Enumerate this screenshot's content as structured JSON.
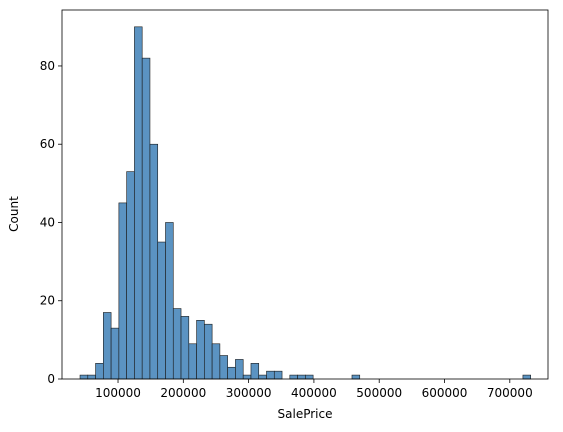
{
  "chart_data": {
    "type": "histogram",
    "xlabel": "SalePrice",
    "ylabel": "Count",
    "bins": [
      41800,
      53700,
      65600,
      77500,
      89400,
      101300,
      113200,
      125100,
      137000,
      148900,
      160800,
      172700,
      184600,
      196500,
      208400,
      220300,
      232200,
      244100,
      256000,
      267900,
      279800,
      291700,
      303600,
      315500,
      327400,
      339300,
      351200,
      363100,
      375000,
      386900,
      398800,
      410700,
      422600,
      434500,
      446400,
      458300,
      470200,
      482100,
      494000,
      505900,
      517800,
      529700,
      541600,
      553500,
      565400,
      577300,
      589200,
      601100,
      613000,
      624900,
      636800,
      648700,
      660600,
      672500,
      684400,
      696300,
      708200,
      720100,
      732000
    ],
    "counts": [
      1,
      1,
      4,
      17,
      13,
      45,
      53,
      90,
      82,
      60,
      35,
      40,
      18,
      16,
      9,
      15,
      14,
      9,
      6,
      3,
      5,
      1,
      4,
      1,
      2,
      2,
      0,
      1,
      1,
      1,
      0,
      0,
      0,
      0,
      0,
      1,
      0,
      0,
      0,
      0,
      0,
      0,
      0,
      0,
      0,
      0,
      0,
      0,
      0,
      0,
      0,
      0,
      0,
      0,
      0,
      0,
      0,
      1
    ],
    "color": "#5b93c2",
    "xlim": [
      14200,
      758500
    ],
    "ylim": [
      0,
      94.3
    ],
    "xticks": [
      100000,
      200000,
      300000,
      400000,
      500000,
      600000,
      700000
    ],
    "yticks": [
      0,
      20,
      40,
      60,
      80
    ]
  }
}
